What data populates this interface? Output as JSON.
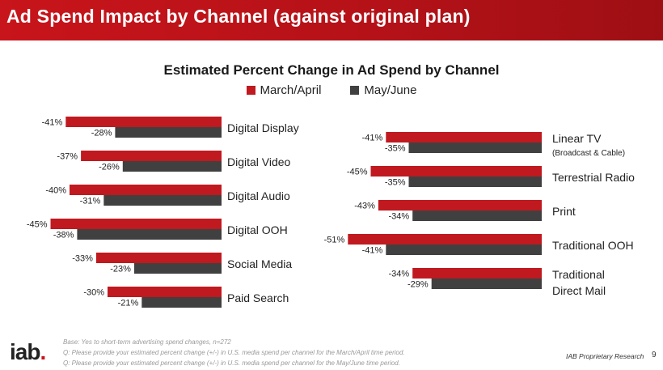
{
  "header": {
    "title": "Ad Spend Impact by Channel (against original plan)"
  },
  "colors": {
    "march_april": "#c0191f",
    "may_june": "#404040",
    "banner": "#c8141b"
  },
  "chart_data": [
    {
      "type": "bar",
      "orientation": "horizontal",
      "title": "Estimated Percent Change in Ad Spend by Channel",
      "categories": [
        "Digital Display",
        "Digital Video",
        "Digital Audio",
        "Digital OOH",
        "Social Media",
        "Paid Search"
      ],
      "series": [
        {
          "name": "March/April",
          "values": [
            -41,
            -37,
            -40,
            -45,
            -33,
            -30
          ],
          "labels": [
            "-41%",
            "-37%",
            "-40%",
            "-45%",
            "-33%",
            "-30%"
          ]
        },
        {
          "name": "May/June",
          "values": [
            -28,
            -26,
            -31,
            -38,
            -23,
            -21
          ],
          "labels": [
            "-28%",
            "-26%",
            "-31%",
            "-38%",
            "-23%",
            "-21%"
          ]
        }
      ]
    },
    {
      "type": "bar",
      "orientation": "horizontal",
      "categories": [
        "Linear TV",
        "Terrestrial Radio",
        "Print",
        "Traditional OOH",
        "Traditional Direct Mail"
      ],
      "category_display": [
        [
          "Linear TV",
          "(Broadcast & Cable)"
        ],
        [
          "Terrestrial Radio"
        ],
        [
          "Print"
        ],
        [
          "Traditional OOH"
        ],
        [
          "Traditional",
          "Direct Mail"
        ]
      ],
      "series": [
        {
          "name": "March/April",
          "values": [
            -41,
            -45,
            -43,
            -51,
            -34
          ],
          "labels": [
            "-41%",
            "-45%",
            "-43%",
            "-51%",
            "-34%"
          ]
        },
        {
          "name": "May/June",
          "values": [
            -35,
            -35,
            -34,
            -41,
            -29
          ],
          "labels": [
            "-35%",
            "-35%",
            "-34%",
            "-41%",
            "-29%"
          ]
        }
      ]
    }
  ],
  "legend": {
    "march_april": "March/April",
    "may_june": "May/June"
  },
  "footnotes": {
    "base": "Base: Yes to short-term advertising spend changes, n=272",
    "q1": "Q: Please provide your estimated percent change (+/-) in U.S. media spend per channel for the March/April time period.",
    "q2": "Q: Please provide your estimated percent change (+/-) in U.S. media spend per channel for the May/June time period."
  },
  "footer": {
    "logo_text": "iab",
    "logo_dot": ".",
    "research": "IAB Proprietary Research",
    "page_number": "9"
  }
}
